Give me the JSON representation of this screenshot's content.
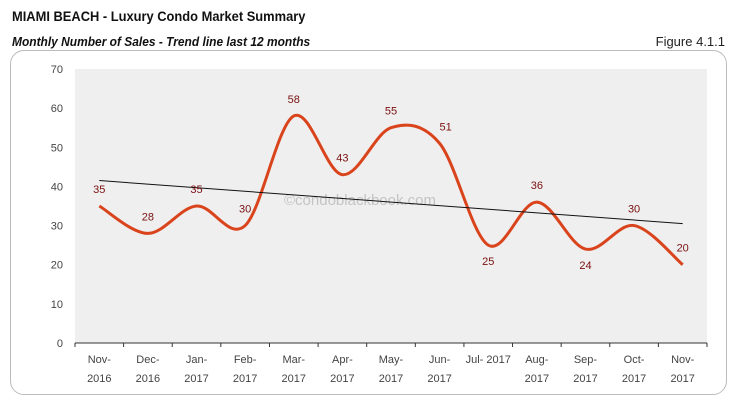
{
  "header": {
    "title": "MIAMI BEACH - Luxury Condo Market Summary",
    "subtitle": "Monthly Number of Sales - Trend line last 12 months",
    "figure": "Figure 4.1.1"
  },
  "watermark": "©condoblackbook.com",
  "colors": {
    "line": "#d9441c",
    "label": "#7a1010",
    "trend": "#111111",
    "plot_bg": "#efefef"
  },
  "chart_data": {
    "type": "line",
    "title": "Monthly Number of Sales - Trend line last 12 months",
    "categories": [
      [
        "Nov-",
        "2016"
      ],
      [
        "Dec-",
        "2016"
      ],
      [
        "Jan-",
        "2017"
      ],
      [
        "Feb-",
        "2017"
      ],
      [
        "Mar-",
        "2017"
      ],
      [
        "Apr-",
        "2017"
      ],
      [
        "May-",
        "2017"
      ],
      [
        "Jun-",
        "2017"
      ],
      [
        "Jul- 2017",
        ""
      ],
      [
        "Aug-",
        "2017"
      ],
      [
        "Sep-",
        "2017"
      ],
      [
        "Oct-",
        "2017"
      ],
      [
        "Nov-",
        "2017"
      ]
    ],
    "series": [
      {
        "name": "Number of Sales",
        "values": [
          35,
          28,
          35,
          30,
          58,
          43,
          55,
          51,
          25,
          36,
          24,
          30,
          20
        ]
      }
    ],
    "trendline": {
      "start": 41.5,
      "end": 30.5
    },
    "ylim": [
      0,
      70
    ],
    "yticks": [
      0,
      10,
      20,
      30,
      40,
      50,
      60,
      70
    ],
    "xlabel": "",
    "ylabel": "",
    "grid": false
  }
}
